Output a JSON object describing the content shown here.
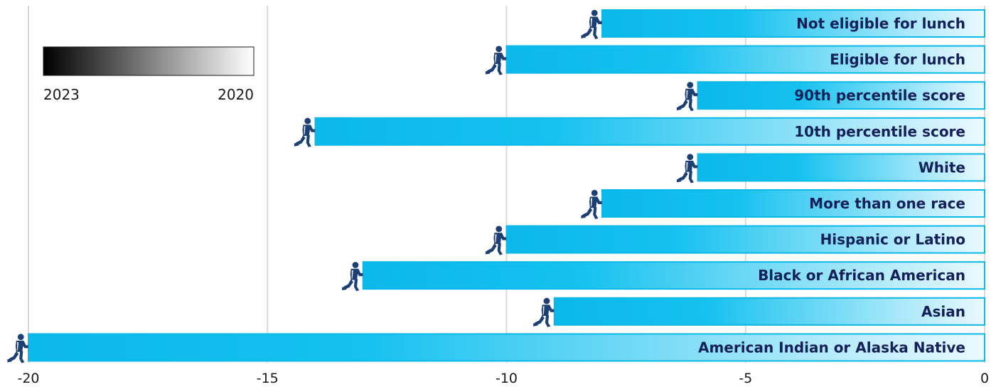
{
  "chart_data": {
    "type": "bar",
    "orientation": "horizontal",
    "categories": [
      "Not eligible for lunch",
      "Eligible for lunch",
      "90th percentile score",
      "10th percentile score",
      "White",
      "More than one race",
      "Hispanic or Latino",
      "Black or African American",
      "Asian",
      "American Indian or Alaska Native"
    ],
    "values": [
      -8,
      -10,
      -6,
      -14,
      -6,
      -8,
      -10,
      -13,
      -9,
      -20
    ],
    "xlim": [
      -20,
      0
    ],
    "xticks": [
      "-20",
      "-15",
      "-10",
      "-5",
      "0"
    ],
    "xtick_values": [
      -20,
      -15,
      -10,
      -5,
      0
    ],
    "grid": "vertical",
    "legend": {
      "placement": "top-left",
      "left_label": "2023",
      "right_label": "2020"
    },
    "colors": {
      "bar_start": "#0bb8ea",
      "bar_end": "#e8f8fe",
      "bar_border": "#0bb8ea",
      "label": "#14205a",
      "figure": "#1c3f74",
      "grid": "#d9d9d9"
    }
  }
}
